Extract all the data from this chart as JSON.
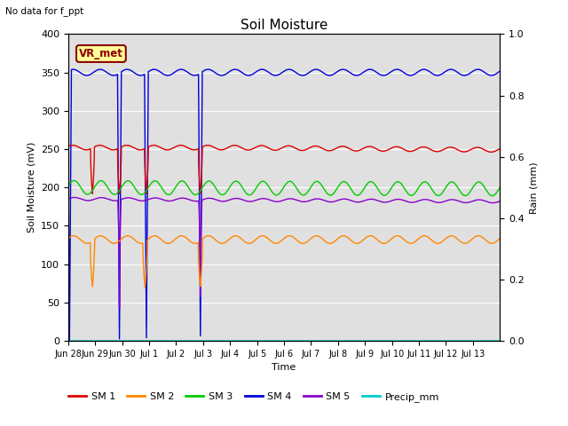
{
  "title": "Soil Moisture",
  "note": "No data for f_ppt",
  "xlabel": "Time",
  "ylabel_left": "Soil Moisture (mV)",
  "ylabel_right": "Rain (mm)",
  "ylim_left": [
    0,
    400
  ],
  "ylim_right": [
    0,
    1.0
  ],
  "bg_color": "#e0e0e0",
  "vr_met_label": "VR_met",
  "x_tick_labels": [
    "Jun 28",
    "Jun 29",
    "Jun 30",
    "Jul 1",
    "Jul 2",
    "Jul 3",
    "Jul 4",
    "Jul 5",
    "Jul 6",
    "Jul 7",
    "Jul 8",
    "Jul 9",
    "Jul 10",
    "Jul 11",
    "Jul 12",
    "Jul 13"
  ],
  "colors": {
    "SM1": "#dd0000",
    "SM2": "#ff8800",
    "SM3": "#00cc00",
    "SM4": "#0000dd",
    "SM5": "#8800cc",
    "Precip": "#00cccc"
  },
  "spike_days": [
    0,
    1,
    2,
    4
  ],
  "spike_day_jul3": 5
}
